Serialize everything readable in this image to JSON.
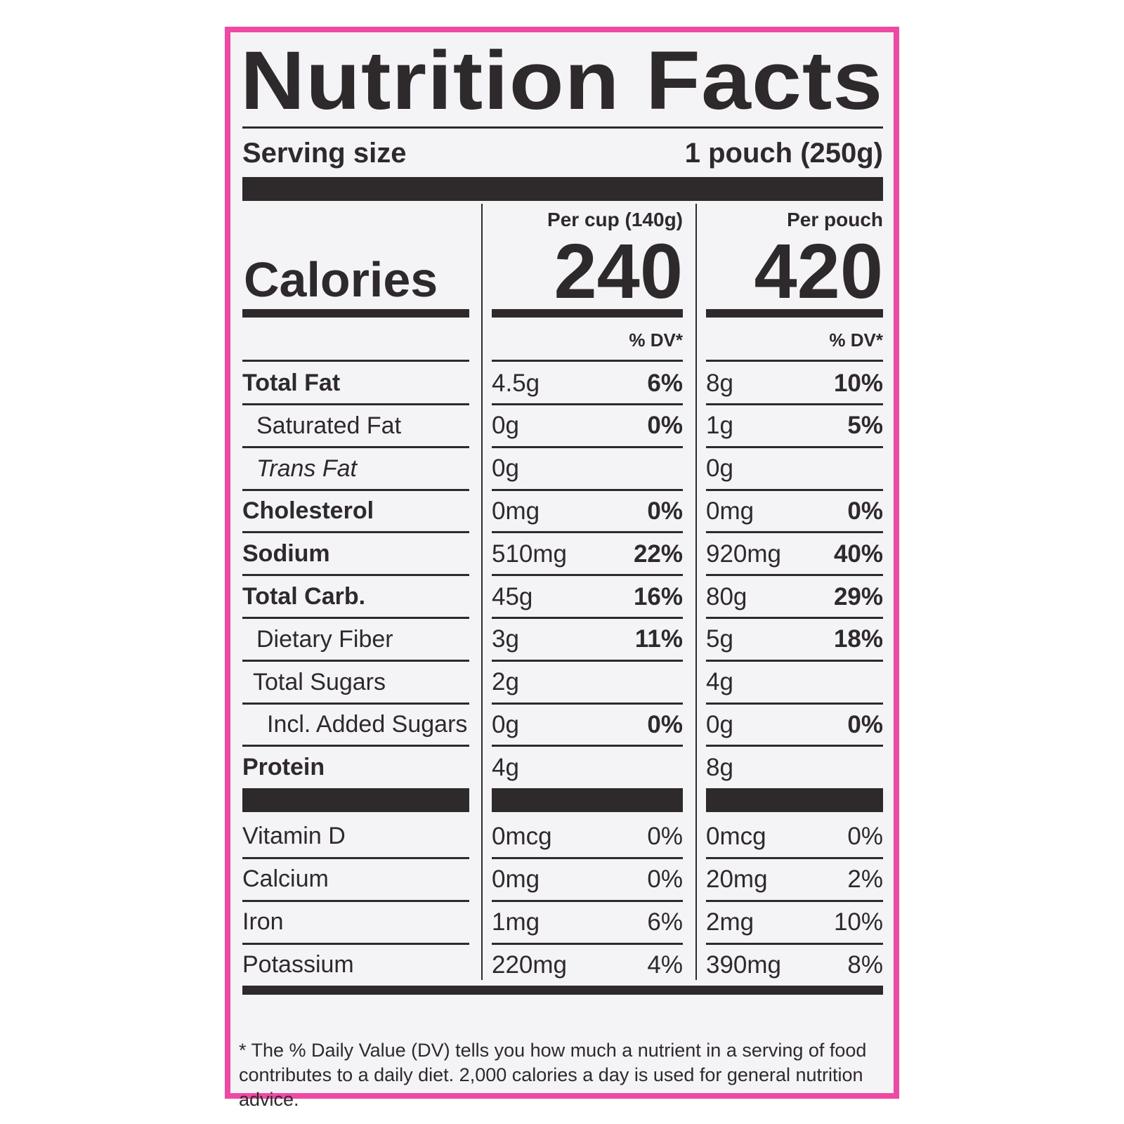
{
  "title": "Nutrition Facts",
  "serving": {
    "label": "Serving size",
    "value": "1 pouch (250g)"
  },
  "columns": [
    "Per cup (140g)",
    "Per pouch"
  ],
  "calories": {
    "label": "Calories",
    "values": [
      "240",
      "420"
    ]
  },
  "dv_header": [
    "% DV*",
    "% DV*"
  ],
  "nutrients": [
    [
      "Total Fat",
      "4.5g",
      "6%",
      "8g",
      "10%"
    ],
    [
      "Saturated Fat",
      "0g",
      "0%",
      "1g",
      "5%"
    ],
    [
      "Trans Fat",
      "0g",
      null,
      "0g",
      null
    ],
    [
      "Cholesterol",
      "0mg",
      "0%",
      "0mg",
      "0%"
    ],
    [
      "Sodium",
      "510mg",
      "22%",
      "920mg",
      "40%"
    ],
    [
      "Total Carb.",
      "45g",
      "16%",
      "80g",
      "29%"
    ],
    [
      "Dietary Fiber",
      "3g",
      "11%",
      "5g",
      "18%"
    ],
    [
      "Total Sugars",
      "2g",
      null,
      "4g",
      null
    ],
    [
      "Incl. Added Sugars",
      "0g",
      "0%",
      "0g",
      "0%"
    ],
    [
      "Protein",
      "4g",
      null,
      "8g",
      null
    ]
  ],
  "vitamins": [
    [
      "Vitamin D",
      "0mcg",
      "0%",
      "0mcg",
      "0%"
    ],
    [
      "Calcium",
      "0mg",
      "0%",
      "20mg",
      "2%"
    ],
    [
      "Iron",
      "1mg",
      "6%",
      "2mg",
      "10%"
    ],
    [
      "Potassium",
      "220mg",
      "4%",
      "390mg",
      "8%"
    ]
  ],
  "footnote": "* The % Daily Value (DV) tells you how much a nutrient in a serving of food contributes to a daily diet. 2,000 calories a day is used for general nutrition advice."
}
